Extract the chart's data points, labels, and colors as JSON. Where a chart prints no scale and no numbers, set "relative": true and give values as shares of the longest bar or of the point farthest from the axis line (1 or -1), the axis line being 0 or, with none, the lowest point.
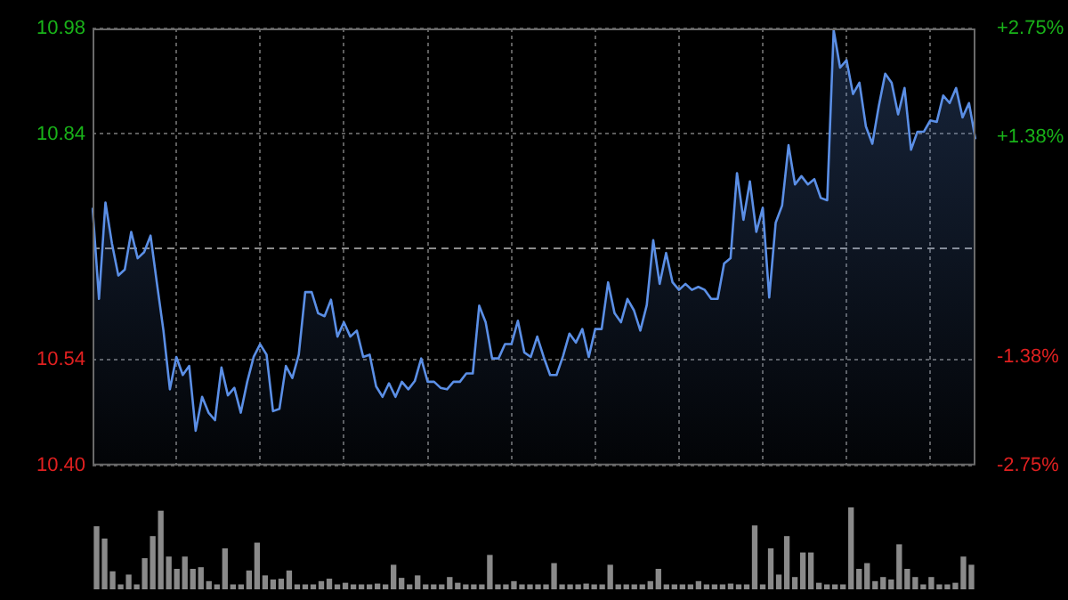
{
  "chart_data": [
    {
      "type": "area",
      "categories": [
        null,
        null,
        null,
        null,
        null,
        null,
        null,
        null,
        null,
        null,
        null,
        null,
        null,
        null,
        null,
        null,
        null,
        null,
        null,
        null,
        null,
        null,
        null,
        null,
        null,
        null,
        null,
        null,
        null,
        null,
        null,
        null,
        null,
        null,
        null,
        null,
        null,
        null,
        null,
        null,
        null,
        null,
        null,
        null,
        null,
        null,
        null,
        null,
        null,
        null,
        null,
        null,
        null,
        null,
        null,
        null,
        null,
        null,
        null,
        null,
        null,
        null,
        null,
        null,
        null,
        null,
        null,
        null,
        null,
        null,
        null,
        null,
        null,
        null,
        null,
        null,
        null,
        null,
        null,
        null,
        null,
        null,
        null,
        null,
        null,
        null,
        null,
        null,
        null,
        null,
        null,
        null,
        null,
        null,
        null,
        null,
        null,
        null,
        null,
        null,
        null,
        null,
        null,
        null,
        null,
        null,
        null,
        null,
        null,
        null,
        null,
        null,
        null,
        null,
        null,
        null,
        null,
        null,
        null,
        null,
        null,
        null,
        null,
        null,
        null,
        null,
        null,
        null,
        null,
        null,
        null,
        null,
        null,
        null,
        null,
        null,
        null,
        null
      ],
      "series": [
        {
          "color": "#5b8fe6",
          "values": [
            10.742,
            10.621,
            10.749,
            10.695,
            10.652,
            10.66,
            10.71,
            10.675,
            10.683,
            10.705,
            10.641,
            10.579,
            10.501,
            10.544,
            10.52,
            10.532,
            10.446,
            10.491,
            10.47,
            10.46,
            10.53,
            10.493,
            10.503,
            10.47,
            10.511,
            10.544,
            10.561,
            10.547,
            10.472,
            10.475,
            10.532,
            10.516,
            10.547,
            10.63,
            10.63,
            10.602,
            10.598,
            10.62,
            10.571,
            10.59,
            10.571,
            10.579,
            10.544,
            10.547,
            10.505,
            10.491,
            10.509,
            10.491,
            10.511,
            10.501,
            10.512,
            10.542,
            10.511,
            10.511,
            10.503,
            10.501,
            10.511,
            10.511,
            10.522,
            10.522,
            10.612,
            10.59,
            10.542,
            10.542,
            10.561,
            10.561,
            10.592,
            10.55,
            10.544,
            10.571,
            10.544,
            10.52,
            10.52,
            10.545,
            10.575,
            10.563,
            10.581,
            10.544,
            10.581,
            10.581,
            10.643,
            10.602,
            10.59,
            10.621,
            10.606,
            10.579,
            10.613,
            10.699,
            10.641,
            10.682,
            10.643,
            10.633,
            10.641,
            10.633,
            10.637,
            10.633,
            10.621,
            10.621,
            10.668,
            10.675,
            10.788,
            10.726,
            10.777,
            10.71,
            10.742,
            10.623,
            10.722,
            10.745,
            10.825,
            10.773,
            10.784,
            10.773,
            10.78,
            10.755,
            10.752,
            10.978,
            10.928,
            10.938,
            10.893,
            10.908,
            10.85,
            10.827,
            10.877,
            10.92,
            10.908,
            10.866,
            10.901,
            10.819,
            10.843,
            10.843,
            10.858,
            10.856,
            10.891,
            10.881,
            10.901,
            10.862,
            10.881,
            10.833
          ]
        }
      ],
      "ylim": [
        10.4,
        10.98
      ],
      "yticks": [
        {
          "value": 10.4,
          "label": "10.40"
        },
        {
          "value": 10.54,
          "label": "10.54"
        },
        {
          "value": 10.84,
          "label": "10.84"
        },
        {
          "value": 10.98,
          "label": "10.98"
        }
      ],
      "y2lim": [
        -2.75,
        2.75
      ],
      "y2ticks": [
        {
          "value": -2.75,
          "label": "-2.75%"
        },
        {
          "value": -1.38,
          "label": "-1.38%"
        },
        {
          "value": 1.38,
          "label": "+1.38%"
        },
        {
          "value": 2.75,
          "label": "+2.75%"
        }
      ],
      "ref_lines": [
        {
          "axis": "y",
          "value": 10.69,
          "line_style": "dashed"
        }
      ],
      "grid": true,
      "marker": "none",
      "line_style": "solid"
    },
    {
      "type": "bar",
      "relative": true,
      "color": "#8a8a8a",
      "categories": [
        null,
        null,
        null,
        null,
        null,
        null,
        null,
        null,
        null,
        null,
        null,
        null,
        null,
        null,
        null,
        null,
        null,
        null,
        null,
        null,
        null,
        null,
        null,
        null,
        null,
        null,
        null,
        null,
        null,
        null,
        null,
        null,
        null,
        null,
        null,
        null,
        null,
        null,
        null,
        null,
        null,
        null,
        null,
        null,
        null,
        null,
        null,
        null,
        null,
        null,
        null,
        null,
        null,
        null,
        null,
        null,
        null,
        null,
        null,
        null,
        null,
        null,
        null,
        null,
        null,
        null,
        null,
        null,
        null,
        null,
        null,
        null,
        null,
        null,
        null,
        null,
        null,
        null,
        null,
        null,
        null,
        null,
        null,
        null,
        null,
        null,
        null,
        null,
        null,
        null,
        null,
        null,
        null,
        null,
        null,
        null,
        null,
        null,
        null,
        null,
        null,
        null,
        null,
        null,
        null,
        null,
        null,
        null,
        null,
        null
      ],
      "values": [
        0.77,
        0.62,
        0.22,
        0.06,
        0.18,
        0.06,
        0.38,
        0.65,
        0.96,
        0.4,
        0.25,
        0.4,
        0.25,
        0.27,
        0.1,
        0.06,
        0.5,
        0.06,
        0.06,
        0.23,
        0.57,
        0.17,
        0.12,
        0.13,
        0.23,
        0.06,
        0.06,
        0.06,
        0.1,
        0.13,
        0.06,
        0.08,
        0.06,
        0.06,
        0.06,
        0.07,
        0.06,
        0.3,
        0.14,
        0.06,
        0.17,
        0.06,
        0.06,
        0.06,
        0.15,
        0.08,
        0.06,
        0.06,
        0.06,
        0.42,
        0.06,
        0.06,
        0.1,
        0.06,
        0.06,
        0.06,
        0.06,
        0.32,
        0.06,
        0.06,
        0.06,
        0.07,
        0.06,
        0.06,
        0.3,
        0.06,
        0.06,
        0.06,
        0.06,
        0.1,
        0.25,
        0.06,
        0.06,
        0.06,
        0.06,
        0.1,
        0.06,
        0.06,
        0.06,
        0.07,
        0.06,
        0.06,
        0.78,
        0.06,
        0.5,
        0.18,
        0.65,
        0.15,
        0.45,
        0.45,
        0.08,
        0.06,
        0.06,
        0.06,
        1,
        0.25,
        0.32,
        0.1,
        0.15,
        0.12,
        0.55,
        0.25,
        0.15,
        0.06,
        0.15,
        0.06,
        0.06,
        0.08,
        0.4,
        0.3
      ]
    }
  ]
}
